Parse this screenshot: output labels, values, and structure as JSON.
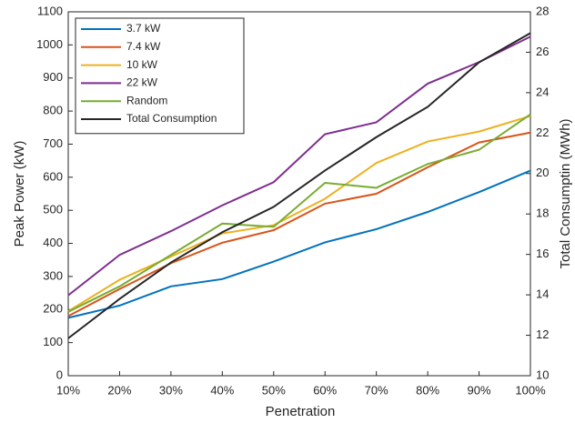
{
  "chart_data": {
    "type": "line",
    "xlabel": "Penetration",
    "ylabel": "Peak Power (kW)",
    "y2label": "Total Consumptin (MWh)",
    "categories": [
      "10%",
      "20%",
      "30%",
      "40%",
      "50%",
      "60%",
      "70%",
      "80%",
      "90%",
      "100%"
    ],
    "ylim": [
      0,
      1100
    ],
    "yticks": [
      0,
      100,
      200,
      300,
      400,
      500,
      600,
      700,
      800,
      900,
      1000,
      1100
    ],
    "y2lim": [
      10,
      28
    ],
    "y2ticks": [
      10,
      12,
      14,
      16,
      18,
      20,
      22,
      24,
      26,
      28
    ],
    "legend": "upper-left",
    "series": [
      {
        "name": "3.7 kW",
        "color": "#0072bd",
        "values": [
          175,
          212,
          270,
          292,
          345,
          403,
          443,
          495,
          555,
          620
        ]
      },
      {
        "name": "7.4 kW",
        "color": "#d95319",
        "values": [
          180,
          262,
          340,
          402,
          440,
          520,
          550,
          630,
          705,
          735
        ]
      },
      {
        "name": "10 kW",
        "color": "#edb120",
        "values": [
          195,
          290,
          360,
          430,
          455,
          535,
          643,
          708,
          738,
          785
        ]
      },
      {
        "name": "22 kW",
        "color": "#7e2f8e",
        "values": [
          243,
          365,
          437,
          515,
          585,
          730,
          766,
          883,
          948,
          1025
        ]
      },
      {
        "name": "Random",
        "color": "#77ac30",
        "values": [
          193,
          270,
          365,
          460,
          450,
          583,
          568,
          640,
          683,
          790
        ]
      },
      {
        "name": "Total Consumption",
        "color": "#262626",
        "axis": "y2",
        "values": [
          11.85,
          13.8,
          15.6,
          17.1,
          18.35,
          20.15,
          21.8,
          23.3,
          25.5,
          26.95
        ]
      }
    ]
  }
}
